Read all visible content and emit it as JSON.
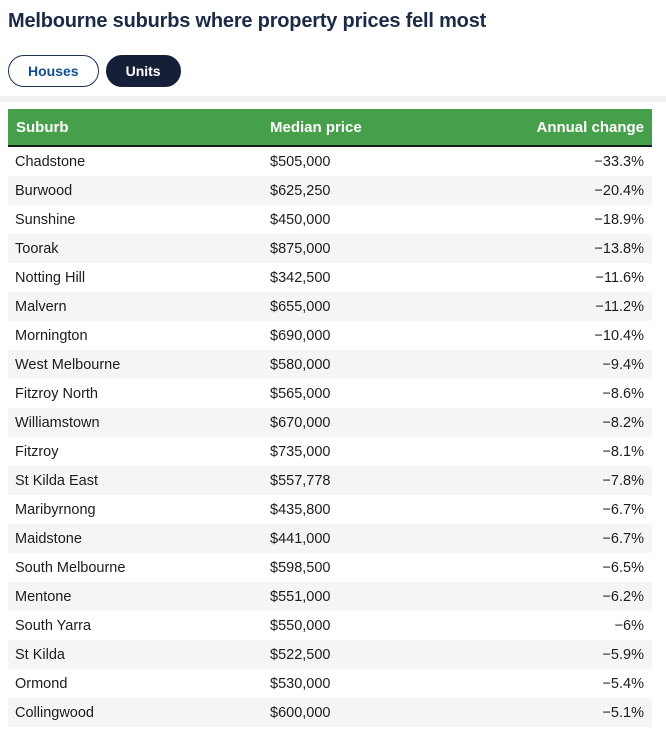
{
  "title": "Melbourne suburbs where property prices fell most",
  "tabs": {
    "houses": {
      "label": "Houses",
      "selected": false
    },
    "units": {
      "label": "Units",
      "selected": true
    }
  },
  "table": {
    "columns": {
      "suburb": "Suburb",
      "price": "Median price",
      "change": "Annual change"
    },
    "rows": [
      {
        "suburb": "Chadstone",
        "median_price": "$505,000",
        "annual_change": "−33.3%"
      },
      {
        "suburb": "Burwood",
        "median_price": "$625,250",
        "annual_change": "−20.4%"
      },
      {
        "suburb": "Sunshine",
        "median_price": "$450,000",
        "annual_change": "−18.9%"
      },
      {
        "suburb": "Toorak",
        "median_price": "$875,000",
        "annual_change": "−13.8%"
      },
      {
        "suburb": "Notting Hill",
        "median_price": "$342,500",
        "annual_change": "−11.6%"
      },
      {
        "suburb": "Malvern",
        "median_price": "$655,000",
        "annual_change": "−11.2%"
      },
      {
        "suburb": "Mornington",
        "median_price": "$690,000",
        "annual_change": "−10.4%"
      },
      {
        "suburb": "West Melbourne",
        "median_price": "$580,000",
        "annual_change": "−9.4%"
      },
      {
        "suburb": "Fitzroy North",
        "median_price": "$565,000",
        "annual_change": "−8.6%"
      },
      {
        "suburb": "Williamstown",
        "median_price": "$670,000",
        "annual_change": "−8.2%"
      },
      {
        "suburb": "Fitzroy",
        "median_price": "$735,000",
        "annual_change": "−8.1%"
      },
      {
        "suburb": "St Kilda East",
        "median_price": "$557,778",
        "annual_change": "−7.8%"
      },
      {
        "suburb": "Maribyrnong",
        "median_price": "$435,800",
        "annual_change": "−6.7%"
      },
      {
        "suburb": "Maidstone",
        "median_price": "$441,000",
        "annual_change": "−6.7%"
      },
      {
        "suburb": "South Melbourne",
        "median_price": "$598,500",
        "annual_change": "−6.5%"
      },
      {
        "suburb": "Mentone",
        "median_price": "$551,000",
        "annual_change": "−6.2%"
      },
      {
        "suburb": "South Yarra",
        "median_price": "$550,000",
        "annual_change": "−6%"
      },
      {
        "suburb": "St Kilda",
        "median_price": "$522,500",
        "annual_change": "−5.9%"
      },
      {
        "suburb": "Ormond",
        "median_price": "$530,000",
        "annual_change": "−5.4%"
      },
      {
        "suburb": "Collingwood",
        "median_price": "$600,000",
        "annual_change": "−5.1%"
      }
    ]
  },
  "colors": {
    "header_green": "#46a04b",
    "header_border": "#14211a",
    "active_tab_navy": "#151f38",
    "inactive_tab_border": "#1d3358",
    "inactive_tab_text": "#114e8c",
    "title_text": "#1b2b47",
    "row_alt_bg": "#f5f5f5",
    "body_text": "#1c1c1c"
  },
  "chart_data": {
    "type": "table",
    "title": "Melbourne suburbs where property prices fell most",
    "tabs": [
      "Houses",
      "Units"
    ],
    "active_tab": "Units",
    "columns": [
      "Suburb",
      "Median price",
      "Annual change"
    ],
    "categories": [
      "Chadstone",
      "Burwood",
      "Sunshine",
      "Toorak",
      "Notting Hill",
      "Malvern",
      "Mornington",
      "West Melbourne",
      "Fitzroy North",
      "Williamstown",
      "Fitzroy",
      "St Kilda East",
      "Maribyrnong",
      "Maidstone",
      "South Melbourne",
      "Mentone",
      "South Yarra",
      "St Kilda",
      "Ormond",
      "Collingwood"
    ],
    "series": [
      {
        "name": "Median price ($)",
        "values": [
          505000,
          625250,
          450000,
          875000,
          342500,
          655000,
          690000,
          580000,
          565000,
          670000,
          735000,
          557778,
          435800,
          441000,
          598500,
          551000,
          550000,
          522500,
          530000,
          600000
        ]
      },
      {
        "name": "Annual change (%)",
        "values": [
          -33.3,
          -20.4,
          -18.9,
          -13.8,
          -11.6,
          -11.2,
          -10.4,
          -9.4,
          -8.6,
          -8.2,
          -8.1,
          -7.8,
          -6.7,
          -6.7,
          -6.5,
          -6.2,
          -6,
          -5.9,
          -5.4,
          -5.1
        ]
      }
    ],
    "layout": {
      "header_fill": "#46a04b",
      "row_striping": true,
      "sorted_by": "Annual change ascending"
    }
  }
}
